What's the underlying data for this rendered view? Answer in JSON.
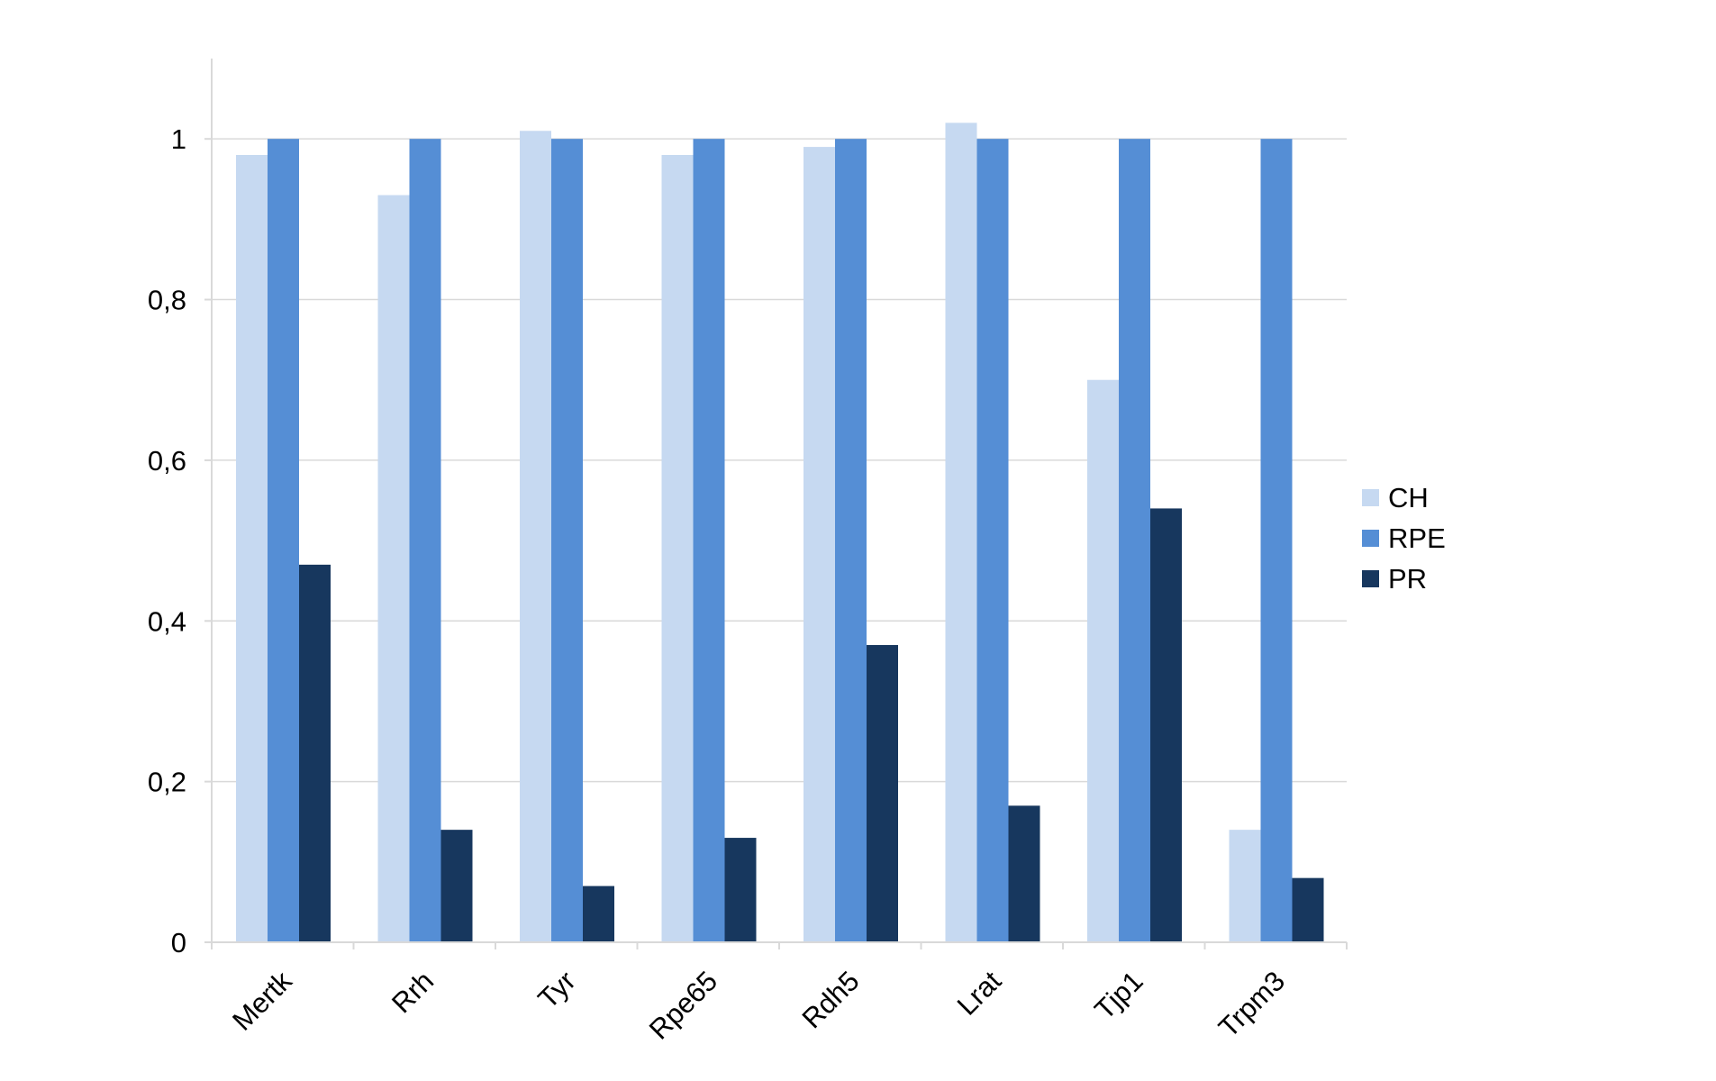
{
  "chart_data": {
    "type": "bar",
    "categories": [
      "Mertk",
      "Rrh",
      "Tyr",
      "Rpe65",
      "Rdh5",
      "Lrat",
      "Tjp1",
      "Trpm3"
    ],
    "series": [
      {
        "name": "CH",
        "color": "#c6d9f1",
        "values": [
          0.98,
          0.93,
          1.01,
          0.98,
          0.99,
          1.02,
          0.7,
          0.14
        ]
      },
      {
        "name": "RPE",
        "color": "#558ed5",
        "values": [
          1.0,
          1.0,
          1.0,
          1.0,
          1.0,
          1.0,
          1.0,
          1.0
        ]
      },
      {
        "name": "PR",
        "color": "#17375e",
        "values": [
          0.47,
          0.14,
          0.07,
          0.13,
          0.37,
          0.17,
          0.54,
          0.08
        ]
      }
    ],
    "yticks": [
      "0",
      "0,2",
      "0,4",
      "0,6",
      "0,8",
      "1"
    ],
    "ylim": [
      0,
      1.1
    ],
    "grid": true,
    "legend_position": "right"
  }
}
